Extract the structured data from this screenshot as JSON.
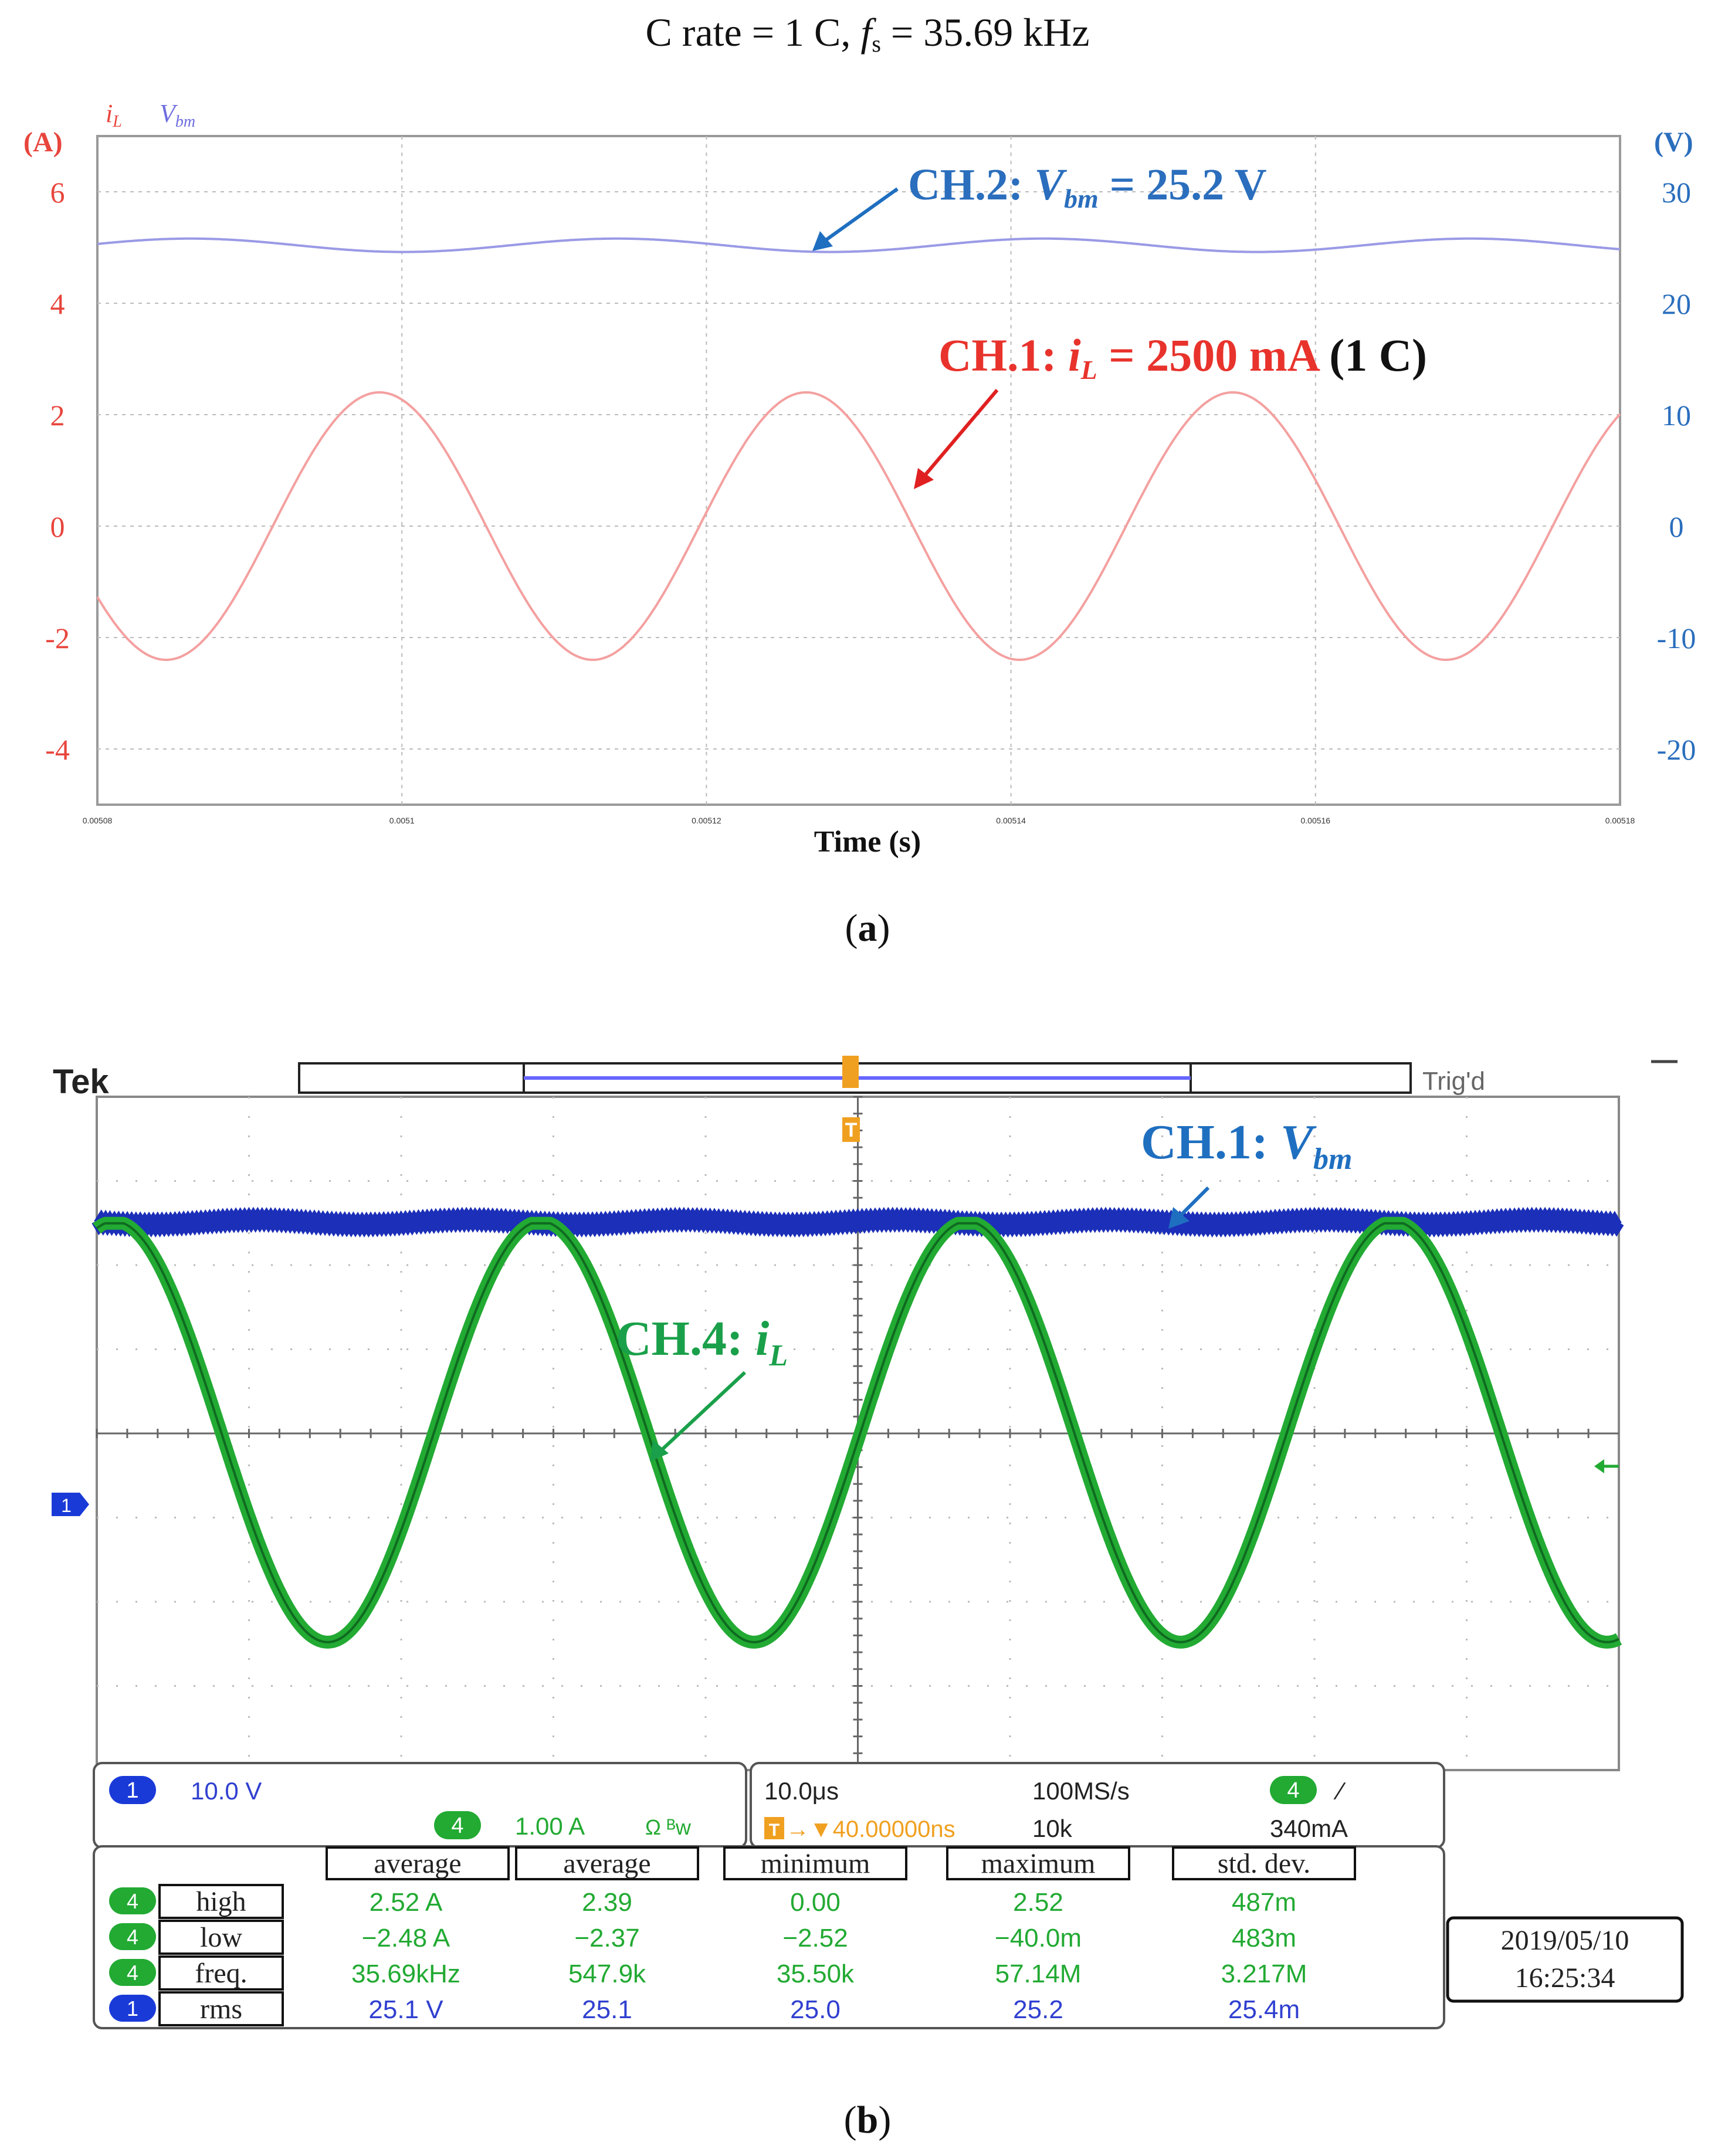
{
  "figure_a": {
    "title_prefix": "C rate = 1 C, ",
    "title_f": "f",
    "title_f_sub": "s",
    "title_suffix": " = 35.69 kHz",
    "legend_il": "i",
    "legend_il_sub": "L",
    "legend_vbm": "V",
    "legend_vbm_sub": "bm",
    "left_unit": "(A)",
    "right_unit": "(V)",
    "xlabel": "Time (s)",
    "caption": "a",
    "ch2_prefix": "CH.2: ",
    "ch2_sym": "V",
    "ch2_sub": "bm",
    "ch2_value": " = 25.2 V",
    "ch1_prefix": "CH.1: ",
    "ch1_sym": "i",
    "ch1_sub": "L",
    "ch1_value": " = 2500 mA",
    "ch1_extra": " (1 C)",
    "colors": {
      "current": "#e8453c",
      "voltage": "#2a6ebd",
      "il_trace": "#f4a0a0",
      "vbm_trace": "#9a9ae6"
    }
  },
  "figure_b": {
    "brand": "Tek",
    "trig_status": "Trig'd",
    "marker_t": "T",
    "marker_ch1": "1",
    "ch1_prefix": "CH.1: ",
    "ch1_sym": "V",
    "ch1_sub": "bm",
    "ch4_prefix": "CH.4: ",
    "ch4_sym": "i",
    "ch4_sub": "L",
    "caption": "b",
    "status": {
      "ch1_badge": "1",
      "ch1_scale": "10.0 V",
      "ch4_badge": "4",
      "ch4_scale": "1.00 A",
      "ch4_flags": "Ω ᴮw",
      "timebase": "10.0μs",
      "sample_rate": "100MS/s",
      "trig_badge": "4",
      "trig_slope": "⁄",
      "trig_pos": "→▼40.00000ns",
      "record_length": "10k",
      "trig_level": "340mA"
    },
    "measure_headers": [
      "average",
      "average",
      "minimum",
      "maximum",
      "std. dev."
    ],
    "measurements": [
      {
        "ch": "4",
        "name": "high",
        "values": [
          "2.52 A",
          "2.39",
          "0.00",
          "2.52",
          "487m"
        ]
      },
      {
        "ch": "4",
        "name": "low",
        "values": [
          "−2.48 A",
          "−2.37",
          "−2.52",
          "−40.0m",
          "483m"
        ]
      },
      {
        "ch": "4",
        "name": "freq.",
        "values": [
          "35.69kHz",
          "547.9k",
          "35.50k",
          "57.14M",
          "3.217M"
        ]
      },
      {
        "ch": "1",
        "name": "rms",
        "values": [
          "25.1 V",
          "25.1",
          "25.0",
          "25.2",
          "25.4m"
        ]
      }
    ],
    "date": "2019/05/10",
    "time": "16:25:34",
    "colors": {
      "ch1": "#1c2fb8",
      "ch4": "#22aa33",
      "label_blue": "#1f6fc0",
      "label_green": "#1aa04a",
      "orange": "#f0a020"
    }
  },
  "chart_data": [
    {
      "type": "line",
      "title": "C rate = 1 C, fs = 35.69 kHz",
      "xlabel": "Time (s)",
      "ylabel_left": "(A)",
      "ylabel_right": "(V)",
      "xlim": [
        0.00508,
        0.00518
      ],
      "x_ticks": [
        "0.00508",
        "0.0051",
        "0.00512",
        "0.00514",
        "0.00516",
        "0.00518"
      ],
      "ylim_left": [
        -5,
        7
      ],
      "left_ticks": [
        6,
        4,
        2,
        0,
        -2,
        -4
      ],
      "ylim_right": [
        -25,
        35
      ],
      "right_ticks": [
        30,
        20,
        10,
        0,
        -10,
        -20
      ],
      "frequency_hz": 35690,
      "series": [
        {
          "name": "iL",
          "axis": "left",
          "unit": "A",
          "amplitude": 2.4,
          "offset": 0.0,
          "phase_rad": 3.7
        },
        {
          "name": "Vbm",
          "axis": "right",
          "unit": "V",
          "mean": 25.2,
          "ripple_amplitude": 0.6,
          "phase_rad": 0.2
        }
      ]
    },
    {
      "type": "line",
      "title": "Tek",
      "time_per_div_us": 10.0,
      "divisions_x": 10,
      "divisions_y": 8,
      "series": [
        {
          "name": "CH.1 Vbm",
          "unit": "V",
          "scale_per_div": 10.0,
          "mean": 25.1
        },
        {
          "name": "CH.4 iL",
          "unit": "A",
          "scale_per_div": 1.0,
          "high": 2.52,
          "low": -2.48,
          "frequency_hz": 35690
        }
      ]
    }
  ]
}
